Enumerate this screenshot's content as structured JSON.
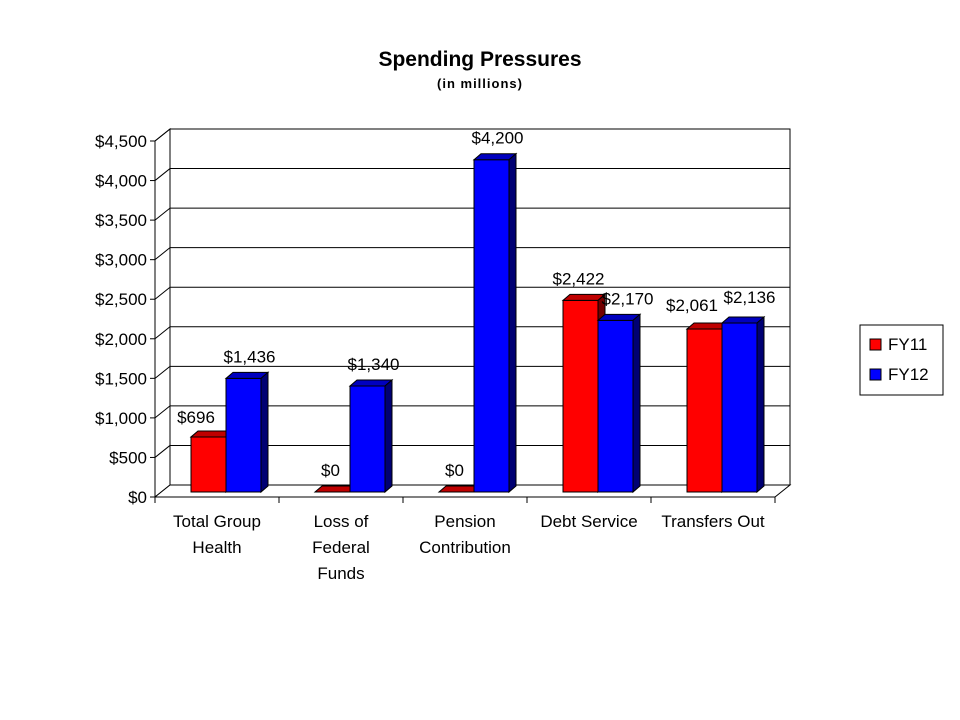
{
  "chart_data": {
    "type": "bar",
    "title": "Spending Pressures",
    "subtitle": "(in millions)",
    "xlabel": "",
    "ylabel": "",
    "ylim": [
      0,
      4500
    ],
    "ytick_step": 500,
    "ytick_labels": [
      "$0",
      "$500",
      "$1,000",
      "$1,500",
      "$2,000",
      "$2,500",
      "$3,000",
      "$3,500",
      "$4,000",
      "$4,500"
    ],
    "categories": [
      [
        "Total Group",
        "Health"
      ],
      [
        "Loss of",
        "Federal",
        "Funds"
      ],
      [
        "Pension",
        "Contribution"
      ],
      [
        "Debt Service"
      ],
      [
        "Transfers Out"
      ]
    ],
    "series": [
      {
        "name": "FY11",
        "color": "#ff0000",
        "values": [
          696,
          0,
          0,
          2422,
          2061
        ],
        "labels": [
          "$696",
          "$0",
          "$0",
          "$2,422",
          "$2,061"
        ]
      },
      {
        "name": "FY12",
        "color": "#0000ff",
        "values": [
          1436,
          1340,
          4200,
          2170,
          2136
        ],
        "labels": [
          "$1,436",
          "$1,340",
          "$4,200",
          "$2,170",
          "$2,136"
        ]
      }
    ],
    "grid": true,
    "legend": "right",
    "style": "3d-clustered-column"
  }
}
